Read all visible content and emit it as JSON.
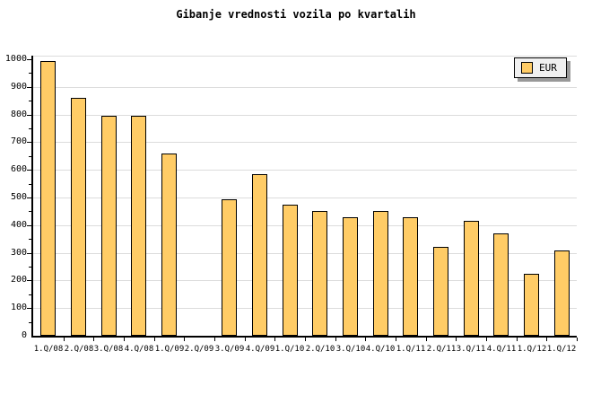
{
  "title": "Gibanje vrednosti vozila po kvartalih",
  "legend": {
    "label": "EUR"
  },
  "colors": {
    "background": "#FFFFFF",
    "bar_fill": "#FFCC66",
    "bar_border": "#000000",
    "grid": "#DCDCDC",
    "axis": "#000000",
    "legend_bg": "#F0F0F0",
    "legend_shadow": "#999999",
    "text": "#000000"
  },
  "y_axis": {
    "tick_labels": [
      "0",
      "100",
      "200",
      "300",
      "400",
      "500",
      "600",
      "700",
      "800",
      "900",
      "1000"
    ],
    "major_step": 100,
    "minor_step": 50
  },
  "chart_data": {
    "type": "bar",
    "title": "Gibanje vrednosti vozila po kvartalih",
    "categories": [
      "1.Q/08",
      "2.Q/08",
      "3.Q/08",
      "4.Q/08",
      "1.Q/09",
      "2.Q/09",
      "3.Q/09",
      "4.Q/09",
      "1.Q/10",
      "2.Q/10",
      "3.Q/10",
      "4.Q/10",
      "1.Q/11",
      "2.Q/11",
      "3.Q/11",
      "4.Q/11",
      "1.Q/12",
      "1.Q/12"
    ],
    "series": [
      {
        "name": "EUR",
        "values": [
          995,
          860,
          795,
          795,
          660,
          null,
          495,
          585,
          475,
          450,
          430,
          450,
          430,
          320,
          415,
          370,
          225,
          310
        ]
      }
    ],
    "note_missing_value_category": "2.Q/09",
    "xlabel": "",
    "ylabel": "",
    "ylim": [
      0,
      1000
    ],
    "grid": "horizontal-major",
    "legend_position": "top-right"
  }
}
